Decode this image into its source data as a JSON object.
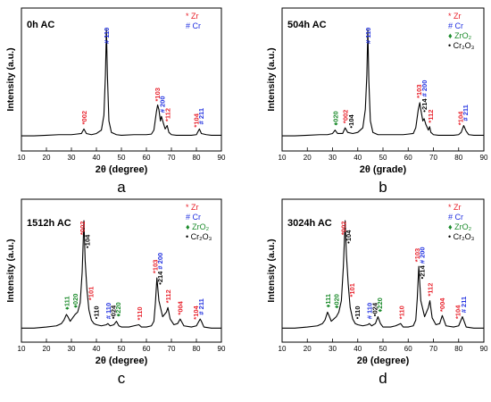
{
  "chart_data": [
    {
      "type": "line",
      "panel_label": "a",
      "sample_label": "0h AC",
      "xlabel": "2θ (degree)",
      "ylabel": "Intensity (a.u.)",
      "xlim": [
        10,
        90
      ],
      "xticks": [
        10,
        20,
        30,
        40,
        50,
        60,
        70,
        80,
        90
      ],
      "legend": [
        {
          "symbol": "*",
          "label": "Zr",
          "color": "#e8202a"
        },
        {
          "symbol": "#",
          "label": "Cr",
          "color": "#1f2fe0"
        }
      ],
      "series": [
        {
          "x": [
            10,
            15,
            20,
            25,
            30,
            32,
            34,
            35,
            36,
            38,
            40,
            42,
            43,
            43.6,
            44,
            44.4,
            45,
            46,
            48,
            50,
            55,
            58,
            60,
            62,
            63,
            64,
            64.5,
            65,
            65.6,
            66,
            66.8,
            67.5,
            68.3,
            69,
            70,
            72,
            75,
            78,
            80,
            81.2,
            82,
            84,
            86,
            88,
            90
          ],
          "y": [
            0.07,
            0.07,
            0.075,
            0.08,
            0.08,
            0.085,
            0.09,
            0.13,
            0.09,
            0.08,
            0.09,
            0.12,
            0.25,
            0.6,
            1.0,
            0.6,
            0.2,
            0.1,
            0.08,
            0.075,
            0.08,
            0.08,
            0.08,
            0.085,
            0.12,
            0.28,
            0.34,
            0.3,
            0.2,
            0.24,
            0.18,
            0.13,
            0.16,
            0.1,
            0.08,
            0.075,
            0.075,
            0.075,
            0.08,
            0.13,
            0.09,
            0.08,
            0.075,
            0.075,
            0.075
          ]
        }
      ],
      "peak_labels": [
        {
          "x": 35,
          "parts": [
            {
              "text": "*002",
              "color": "#e8202a"
            }
          ]
        },
        {
          "x": 44,
          "parts": [
            {
              "text": "# 110",
              "color": "#1f2fe0"
            }
          ]
        },
        {
          "x": 64.2,
          "parts": [
            {
              "text": "*103",
              "color": "#e8202a"
            }
          ]
        },
        {
          "x": 66.3,
          "parts": [
            {
              "text": "# 200",
              "color": "#1f2fe0"
            }
          ]
        },
        {
          "x": 68.4,
          "parts": [
            {
              "text": "*112",
              "color": "#e8202a"
            }
          ]
        },
        {
          "x": 79.8,
          "parts": [
            {
              "text": "*104",
              "color": "#e8202a"
            }
          ]
        },
        {
          "x": 81.8,
          "parts": [
            {
              "text": "# 211",
              "color": "#1f2fe0"
            }
          ]
        }
      ]
    },
    {
      "type": "line",
      "panel_label": "b",
      "sample_label": "504h AC",
      "xlabel": "2θ (grade)",
      "ylabel": "Intensity (a.u.)",
      "xlim": [
        10,
        90
      ],
      "xticks": [
        10,
        20,
        30,
        40,
        50,
        60,
        70,
        80,
        90
      ],
      "legend": [
        {
          "symbol": "*",
          "label": "Zr",
          "color": "#e8202a"
        },
        {
          "symbol": "#",
          "label": "Cr",
          "color": "#1f2fe0"
        },
        {
          "symbol": "♦",
          "label": "ZrO₂",
          "color": "#1a8a2a"
        },
        {
          "symbol": "•",
          "label": "Cr₂O₃",
          "color": "#000000"
        }
      ],
      "series": [
        {
          "x": [
            10,
            15,
            20,
            25,
            28,
            30,
            31,
            32,
            34,
            35,
            36,
            38,
            40,
            42,
            43,
            43.6,
            44,
            44.4,
            45,
            46,
            48,
            50,
            55,
            58,
            60,
            62,
            63,
            64,
            64.6,
            65,
            65.8,
            66.3,
            67,
            68,
            68.5,
            69,
            70,
            72,
            75,
            78,
            80,
            81,
            82,
            83,
            84,
            86,
            88,
            90
          ],
          "y": [
            0.07,
            0.07,
            0.075,
            0.08,
            0.08,
            0.09,
            0.12,
            0.09,
            0.09,
            0.14,
            0.1,
            0.09,
            0.1,
            0.14,
            0.3,
            0.6,
            1.0,
            0.55,
            0.2,
            0.1,
            0.08,
            0.08,
            0.08,
            0.08,
            0.085,
            0.09,
            0.14,
            0.3,
            0.36,
            0.3,
            0.2,
            0.22,
            0.17,
            0.12,
            0.15,
            0.1,
            0.08,
            0.075,
            0.075,
            0.075,
            0.08,
            0.1,
            0.16,
            0.11,
            0.08,
            0.075,
            0.075,
            0.075
          ]
        }
      ],
      "peak_labels": [
        {
          "x": 31,
          "parts": [
            {
              "text": "♦020",
              "color": "#1a8a2a"
            }
          ]
        },
        {
          "x": 35,
          "parts": [
            {
              "text": "*002",
              "color": "#e8202a"
            }
          ]
        },
        {
          "x": 37.2,
          "parts": [
            {
              "text": "•104",
              "color": "#000000"
            }
          ]
        },
        {
          "x": 44,
          "parts": [
            {
              "text": "# 110",
              "color": "#1f2fe0"
            }
          ]
        },
        {
          "x": 64.2,
          "parts": [
            {
              "text": "*103",
              "color": "#e8202a"
            }
          ]
        },
        {
          "x": 66.3,
          "parts": [
            {
              "text": "•214",
              "color": "#000000"
            },
            {
              "text": " # 200",
              "color": "#1f2fe0"
            }
          ]
        },
        {
          "x": 68.8,
          "parts": [
            {
              "text": "*112",
              "color": "#e8202a"
            }
          ]
        },
        {
          "x": 80.6,
          "parts": [
            {
              "text": "*104",
              "color": "#e8202a"
            }
          ]
        },
        {
          "x": 82.6,
          "parts": [
            {
              "text": "# 211",
              "color": "#1f2fe0"
            }
          ]
        }
      ]
    },
    {
      "type": "line",
      "panel_label": "c",
      "sample_label": "1512h AC",
      "xlabel": "2θ (degree)",
      "ylabel": "Intensity (a.u.)",
      "xlim": [
        10,
        90
      ],
      "xticks": [
        10,
        20,
        30,
        40,
        50,
        60,
        70,
        80,
        90
      ],
      "legend": [
        {
          "symbol": "*",
          "label": "Zr",
          "color": "#e8202a"
        },
        {
          "symbol": "#",
          "label": "Cr",
          "color": "#1f2fe0"
        },
        {
          "symbol": "♦",
          "label": "ZrO₂",
          "color": "#1a8a2a"
        },
        {
          "symbol": "•",
          "label": "Cr₂O₃",
          "color": "#000000"
        }
      ],
      "series": [
        {
          "x": [
            10,
            15,
            20,
            24,
            26,
            27,
            28,
            28.6,
            29.5,
            30.5,
            31.5,
            32.5,
            33.5,
            34.3,
            35,
            35.5,
            36.2,
            37,
            38,
            39,
            40,
            42,
            44,
            44.6,
            45.5,
            47,
            48,
            49,
            50,
            53,
            55,
            57,
            58,
            60,
            62,
            63,
            63.6,
            64.2,
            65,
            66.5,
            68,
            68.6,
            69.5,
            71,
            72.5,
            73.5,
            75,
            78,
            80,
            81.5,
            82,
            83,
            86,
            90
          ],
          "y": [
            0.06,
            0.06,
            0.07,
            0.08,
            0.1,
            0.13,
            0.18,
            0.16,
            0.12,
            0.15,
            0.18,
            0.2,
            0.28,
            0.55,
            1.0,
            0.65,
            0.4,
            0.22,
            0.13,
            0.1,
            0.09,
            0.08,
            0.09,
            0.1,
            0.08,
            0.09,
            0.12,
            0.08,
            0.07,
            0.07,
            0.08,
            0.09,
            0.07,
            0.07,
            0.08,
            0.12,
            0.28,
            0.5,
            0.3,
            0.16,
            0.2,
            0.24,
            0.14,
            0.09,
            0.1,
            0.14,
            0.08,
            0.07,
            0.08,
            0.14,
            0.12,
            0.07,
            0.06,
            0.06
          ]
        }
      ],
      "peak_labels": [
        {
          "x": 28,
          "parts": [
            {
              "text": "♦111",
              "color": "#1a8a2a"
            }
          ]
        },
        {
          "x": 31.5,
          "parts": [
            {
              "text": "♦020",
              "color": "#1a8a2a"
            }
          ]
        },
        {
          "x": 34.2,
          "parts": [
            {
              "text": "*002",
              "color": "#e8202a"
            }
          ]
        },
        {
          "x": 36.2,
          "parts": [
            {
              "text": "•104",
              "color": "#000000"
            }
          ]
        },
        {
          "x": 37.6,
          "parts": [
            {
              "text": "*101",
              "color": "#e8202a"
            }
          ]
        },
        {
          "x": 39.8,
          "parts": [
            {
              "text": "•110",
              "color": "#000000"
            }
          ]
        },
        {
          "x": 44.6,
          "parts": [
            {
              "text": "# 110",
              "color": "#1f2fe0"
            }
          ]
        },
        {
          "x": 46.6,
          "parts": [
            {
              "text": "•024",
              "color": "#000000"
            }
          ]
        },
        {
          "x": 48.6,
          "parts": [
            {
              "text": "♦220",
              "color": "#1a8a2a"
            }
          ]
        },
        {
          "x": 57.2,
          "parts": [
            {
              "text": "*110",
              "color": "#e8202a"
            }
          ]
        },
        {
          "x": 63.4,
          "parts": [
            {
              "text": "*103",
              "color": "#e8202a"
            }
          ]
        },
        {
          "x": 65.4,
          "parts": [
            {
              "text": "•214",
              "color": "#000000"
            },
            {
              "text": " # 200",
              "color": "#1f2fe0"
            }
          ]
        },
        {
          "x": 68.6,
          "parts": [
            {
              "text": "*112",
              "color": "#e8202a"
            }
          ]
        },
        {
          "x": 73.4,
          "parts": [
            {
              "text": "*004",
              "color": "#e8202a"
            }
          ]
        },
        {
          "x": 79.6,
          "parts": [
            {
              "text": "*104",
              "color": "#e8202a"
            }
          ]
        },
        {
          "x": 81.8,
          "parts": [
            {
              "text": "# 211",
              "color": "#1f2fe0"
            }
          ]
        }
      ]
    },
    {
      "type": "line",
      "panel_label": "d",
      "sample_label": "3024h AC",
      "xlabel": "2θ (degree)",
      "ylabel": "Intensity (a.u.)",
      "xlim": [
        10,
        90
      ],
      "xticks": [
        10,
        20,
        30,
        40,
        50,
        60,
        70,
        80,
        90
      ],
      "legend": [
        {
          "symbol": "*",
          "label": "Zr",
          "color": "#e8202a"
        },
        {
          "symbol": "#",
          "label": "Cr",
          "color": "#1f2fe0"
        },
        {
          "symbol": "♦",
          "label": "ZrO₂",
          "color": "#1a8a2a"
        },
        {
          "symbol": "•",
          "label": "Cr₂O₃",
          "color": "#000000"
        }
      ],
      "series": [
        {
          "x": [
            10,
            15,
            20,
            24,
            26,
            27,
            28,
            28.6,
            29.5,
            30.5,
            31.5,
            32.5,
            33.5,
            34.3,
            35,
            35.5,
            36.2,
            37,
            38,
            39,
            40,
            42,
            44,
            44.6,
            45.5,
            47,
            48,
            49,
            50,
            53,
            55,
            57,
            58,
            60,
            62,
            63,
            63.6,
            64.2,
            65,
            66.5,
            68,
            68.6,
            69.5,
            71,
            72.5,
            73.5,
            75,
            78,
            80,
            81.5,
            82,
            83,
            86,
            90
          ],
          "y": [
            0.06,
            0.06,
            0.07,
            0.08,
            0.1,
            0.13,
            0.2,
            0.17,
            0.12,
            0.14,
            0.16,
            0.2,
            0.3,
            0.6,
            1.0,
            0.7,
            0.45,
            0.24,
            0.14,
            0.1,
            0.09,
            0.08,
            0.09,
            0.1,
            0.08,
            0.1,
            0.16,
            0.1,
            0.07,
            0.07,
            0.08,
            0.1,
            0.07,
            0.07,
            0.08,
            0.13,
            0.32,
            0.6,
            0.3,
            0.16,
            0.24,
            0.3,
            0.15,
            0.09,
            0.1,
            0.17,
            0.08,
            0.07,
            0.08,
            0.16,
            0.13,
            0.07,
            0.06,
            0.06
          ]
        }
      ],
      "peak_labels": [
        {
          "x": 28,
          "parts": [
            {
              "text": "♦111",
              "color": "#1a8a2a"
            }
          ]
        },
        {
          "x": 31.5,
          "parts": [
            {
              "text": "♦020",
              "color": "#1a8a2a"
            }
          ]
        },
        {
          "x": 34.2,
          "parts": [
            {
              "text": "*002",
              "color": "#e8202a"
            }
          ]
        },
        {
          "x": 36.2,
          "parts": [
            {
              "text": "•104",
              "color": "#000000"
            }
          ]
        },
        {
          "x": 37.6,
          "parts": [
            {
              "text": "*101",
              "color": "#e8202a"
            }
          ]
        },
        {
          "x": 39.8,
          "parts": [
            {
              "text": "•110",
              "color": "#000000"
            }
          ]
        },
        {
          "x": 44.6,
          "parts": [
            {
              "text": "# 110",
              "color": "#1f2fe0"
            }
          ]
        },
        {
          "x": 46.6,
          "parts": [
            {
              "text": "•024",
              "color": "#000000"
            }
          ]
        },
        {
          "x": 48.6,
          "parts": [
            {
              "text": "♦220",
              "color": "#1a8a2a"
            }
          ]
        },
        {
          "x": 57.2,
          "parts": [
            {
              "text": "*110",
              "color": "#e8202a"
            }
          ]
        },
        {
          "x": 63.4,
          "parts": [
            {
              "text": "*103",
              "color": "#e8202a"
            }
          ]
        },
        {
          "x": 65.4,
          "parts": [
            {
              "text": "•214",
              "color": "#000000"
            },
            {
              "text": " # 200",
              "color": "#1f2fe0"
            }
          ]
        },
        {
          "x": 68.6,
          "parts": [
            {
              "text": "*112",
              "color": "#e8202a"
            }
          ]
        },
        {
          "x": 73.4,
          "parts": [
            {
              "text": "*004",
              "color": "#e8202a"
            }
          ]
        },
        {
          "x": 79.6,
          "parts": [
            {
              "text": "*104",
              "color": "#e8202a"
            }
          ]
        },
        {
          "x": 81.8,
          "parts": [
            {
              "text": "# 211",
              "color": "#1f2fe0"
            }
          ]
        }
      ]
    }
  ]
}
